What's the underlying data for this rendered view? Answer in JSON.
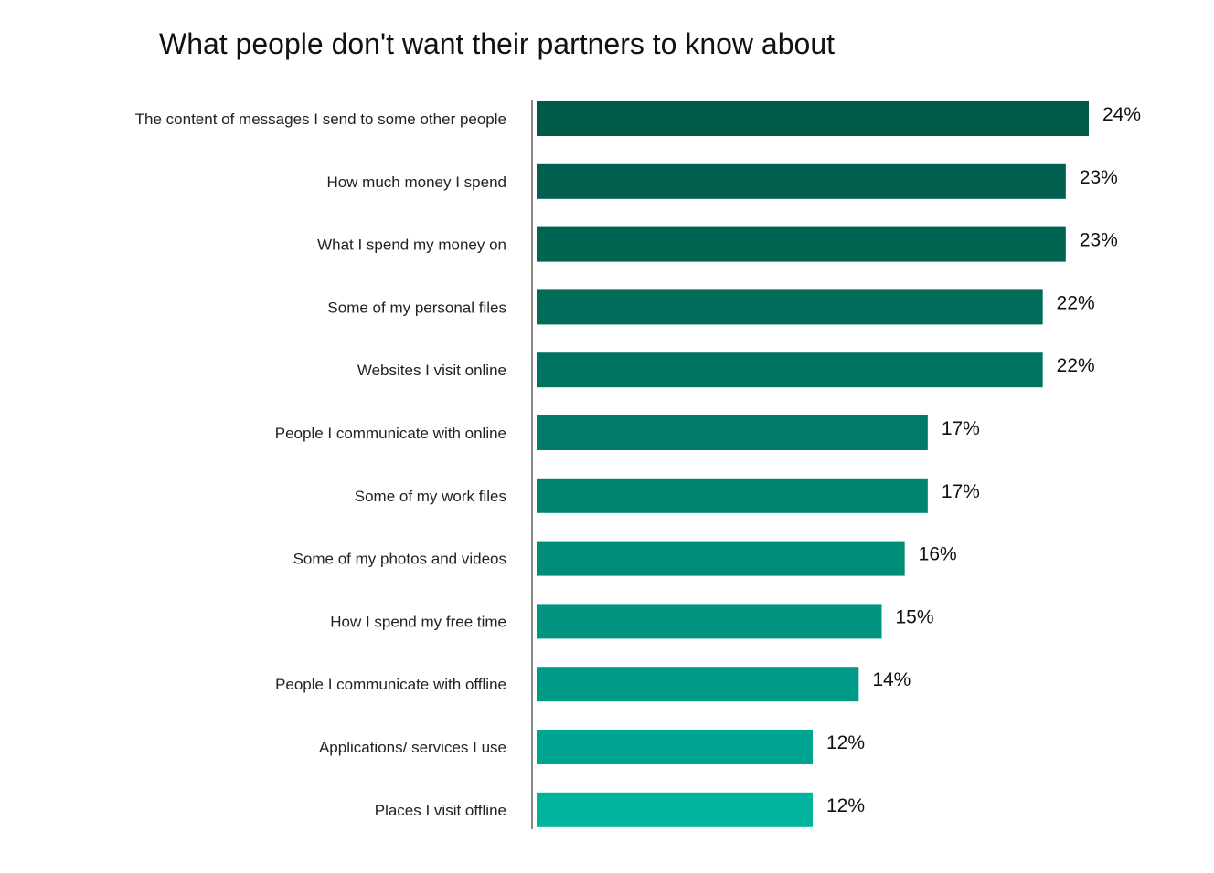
{
  "chart_data": {
    "type": "bar",
    "orientation": "horizontal",
    "title": "What people don't want their partners to know about",
    "categories": [
      "The content of messages I send to some other people",
      "How much money I spend",
      "What I spend my money on",
      "Some of my personal files",
      "Websites I visit online",
      "People I communicate with online",
      "Some of my work files",
      "Some of my photos and videos",
      "How I spend my free time",
      "People I communicate with offline",
      "Applications/ services I use",
      "Places I visit offline"
    ],
    "values": [
      24,
      23,
      23,
      22,
      22,
      17,
      17,
      16,
      15,
      14,
      12,
      12
    ],
    "value_labels": [
      "24%",
      "23%",
      "23%",
      "22%",
      "22%",
      "17%",
      "17%",
      "16%",
      "15%",
      "14%",
      "12%",
      "12%"
    ],
    "bar_colors": [
      "#005a49",
      "#005f4e",
      "#006453",
      "#006b59",
      "#007360",
      "#007c69",
      "#008472",
      "#008c79",
      "#009481",
      "#009b88",
      "#00a592",
      "#00b39f"
    ],
    "axis_color": "#888888",
    "xlim": [
      0,
      24
    ],
    "grid": false,
    "legend": false
  }
}
